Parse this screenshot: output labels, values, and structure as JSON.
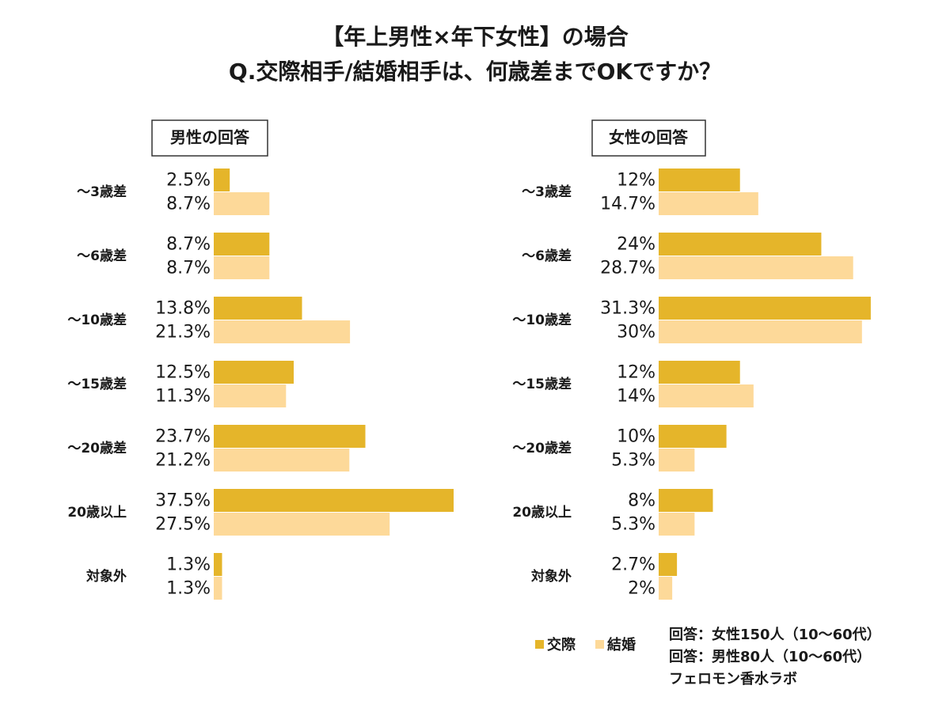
{
  "title": [
    "【年上男性×年下女性】の場合",
    "Q.交際相手/結婚相手は、何歳差までOKですか？"
  ],
  "chart_data": [
    {
      "type": "bar",
      "orientation": "horizontal",
      "title": "男性の回答",
      "categories": [
        "〜3歳差",
        "〜6歳差",
        "〜10歳差",
        "〜15歳差",
        "〜20歳差",
        "20歳以上",
        "対象外"
      ],
      "series": [
        {
          "name": "交際",
          "color": "#e5b52a",
          "values": [
            2.5,
            8.7,
            13.8,
            12.5,
            23.7,
            37.5,
            1.3
          ],
          "value_labels": [
            "2.5%",
            "8.7%",
            "13.8%",
            "12.5%",
            "23.7%",
            "37.5%",
            "1.3%"
          ]
        },
        {
          "name": "結婚",
          "color": "#fdd999",
          "values": [
            8.7,
            8.7,
            21.3,
            11.3,
            21.2,
            27.5,
            1.3
          ],
          "value_labels": [
            "8.7%",
            "8.7%",
            "21.3%",
            "11.3%",
            "21.2%",
            "27.5%",
            "1.3%"
          ]
        }
      ]
    },
    {
      "type": "bar",
      "orientation": "horizontal",
      "title": "女性の回答",
      "categories": [
        "〜3歳差",
        "〜6歳差",
        "〜10歳差",
        "〜15歳差",
        "〜20歳差",
        "20歳以上",
        "対象外"
      ],
      "series": [
        {
          "color": "#e5b52a",
          "values": [
            12,
            24,
            31.3,
            12,
            10,
            8,
            2.7
          ],
          "value_labels": [
            "12%",
            "24%",
            "31.3%",
            "12%",
            "10%",
            "8%",
            "2.7%"
          ]
        },
        {
          "color": "#fdd999",
          "values": [
            14.7,
            28.7,
            30,
            14,
            5.3,
            5.3,
            2
          ],
          "value_labels": [
            "14.7%",
            "28.7%",
            "30%",
            "14%",
            "5.3%",
            "5.3%",
            "2%"
          ]
        }
      ]
    }
  ],
  "notes": [
    "回答：女性150人（10〜60代）",
    "回答：男性80人（10〜60代）",
    "フェロモン香水ラボ"
  ]
}
